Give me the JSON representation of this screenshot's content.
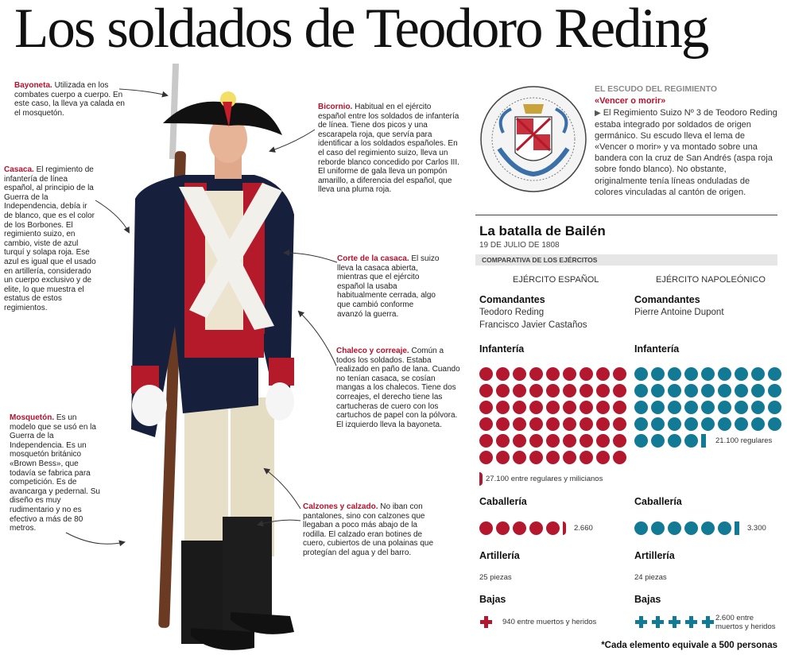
{
  "title": "Los soldados de Teodoro Reding",
  "callouts": {
    "bayoneta": {
      "head": "Bayoneta.",
      "body": " Utilizada en los combates cuerpo a cuerpo. En este caso, la lleva ya calada en el mosquetón."
    },
    "casaca": {
      "head": "Casaca.",
      "body": " El regimiento de infantería de línea español, al principio de la Guerra de la Independencia, debía ir de blanco, que es el color de los Borbones. El regimiento suizo, en cambio, viste de azul turquí y solapa roja. Ese azul es igual que el usado en artillería, considerado un cuerpo exclusivo y de elite, lo que muestra el estatus de estos regimientos."
    },
    "mosqueton": {
      "head": "Mosquetón.",
      "body": " Es un modelo que se usó en la Guerra de la Independencia. Es un mosquetón británico «Brown Bess», que todavía se fabrica para competición. Es de avancarga y pedernal. Su diseño es muy rudimentario y no es efectivo a más de 80 metros."
    },
    "bicornio": {
      "head": "Bicornio.",
      "body": " Habitual en el ejército español entre los soldados de infantería de línea. Tiene dos picos y una escarapela roja, que servía para identificar a los soldados españoles. En el caso del regimiento suizo, lleva un reborde blanco concedido por Carlos III. El uniforme de gala lleva un pompón amarillo, a diferencia del español, que lleva una pluma roja."
    },
    "corte": {
      "head": "Corte de la casaca.",
      "body": " El suizo lleva la casaca abierta, mientras que el ejército español la usaba habitualmente cerrada, algo que cambió conforme avanzó la guerra."
    },
    "chaleco": {
      "head": "Chaleco y correaje.",
      "body": " Común a todos los soldados. Estaba realizado en paño de lana. Cuando no tenían casaca, se cosían mangas a los chalecos. Tiene dos correajes, el derecho tiene las cartucheras de cuero con los cartuchos de papel con la pólvora. El izquierdo lleva la bayoneta."
    },
    "calzones": {
      "head": "Calzones y calzado.",
      "body": " No iban con pantalones, sino con calzones que llegaban a poco más abajo de la rodilla. El calzado eran botines de cuero, cubiertos de una polainas que protegían del agua y del barro."
    }
  },
  "shield": {
    "heading": "EL ESCUDO DEL REGIMIENTO",
    "motto": "«Vencer o morir»",
    "text": "El Regimiento Suizo Nº 3 de Teodoro Reding estaba integrado por soldados de origen germánico. Su escudo lleva el lema de «Vencer o morir» y va montado sobre una bandera con la cruz de San Andrés (aspa roja sobre fondo blanco). No obstante, originalmente tenía líneas onduladas de colores vinculadas al cantón de origen."
  },
  "battle": {
    "title": "La batalla de Bailén",
    "date": "19 DE JULIO DE 1808",
    "comparison": "COMPARATIVA DE LOS EJÉRCITOS",
    "spanish": {
      "army": "EJÉRCITO ESPAÑOL",
      "commanders_label": "Comandantes",
      "commanders": [
        "Teodoro Reding",
        "Francisco Javier Castaños"
      ],
      "infantry_label": "Infantería",
      "infantry_text": "27.100 entre regulares y milicianos",
      "infantry_value": 27100,
      "cavalry_label": "Caballería",
      "cavalry_text": "2.660",
      "cavalry_value": 2660,
      "artillery_label": "Artillería",
      "artillery_text": "25 piezas",
      "casualties_label": "Bajas",
      "casualties_text": "940 entre muertos y heridos",
      "casualties_value": 940,
      "color": "#b3182e"
    },
    "french": {
      "army": "EJÉRCITO NAPOLEÓNICO",
      "commanders_label": "Comandantes",
      "commanders": [
        "Pierre Antoine Dupont"
      ],
      "infantry_label": "Infantería",
      "infantry_text": "21.100 regulares",
      "infantry_value": 21100,
      "cavalry_label": "Caballería",
      "cavalry_text": "3.300",
      "cavalry_value": 3300,
      "artillery_label": "Artillería",
      "artillery_text": "24 piezas",
      "casualties_label": "Bajas",
      "casualties_text_1": "2.600 entre",
      "casualties_text_2": "muertos y heridos",
      "casualties_value": 2600,
      "color": "#137a95"
    },
    "footnote": "*Cada elemento equivale a 500 personas"
  }
}
